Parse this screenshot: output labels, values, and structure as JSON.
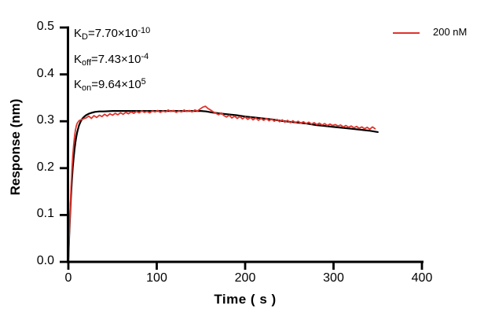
{
  "chart_data": {
    "type": "line",
    "title": "",
    "xlabel": "Time ( s )",
    "ylabel": "Response (nm)",
    "xlim": [
      0,
      400
    ],
    "ylim": [
      0,
      0.5
    ],
    "xticks": [
      "0",
      "100",
      "200",
      "300",
      "400"
    ],
    "yticks": [
      "0.0",
      "0.1",
      "0.2",
      "0.3",
      "0.4",
      "0.5"
    ],
    "grid": false,
    "legend_position": "top-right",
    "annotations": [
      "K_D=7.70×10^-10",
      "K_off=7.43×10^-4",
      "K_on=9.64×10^5"
    ],
    "series": [
      {
        "name": "200 nM",
        "role": "measured sensorgram (noisy)",
        "color": "#de342c",
        "points": [
          [
            0,
            0
          ],
          [
            1,
            0.058
          ],
          [
            2,
            0.112
          ],
          [
            3,
            0.158
          ],
          [
            4,
            0.196
          ],
          [
            5,
            0.226
          ],
          [
            6,
            0.25
          ],
          [
            7,
            0.268
          ],
          [
            8,
            0.281
          ],
          [
            9,
            0.29
          ],
          [
            10,
            0.296
          ],
          [
            12,
            0.301
          ],
          [
            14,
            0.303
          ],
          [
            16,
            0.304
          ],
          [
            18,
            0.306
          ],
          [
            20,
            0.307
          ],
          [
            23,
            0.311
          ],
          [
            26,
            0.306
          ],
          [
            29,
            0.312
          ],
          [
            32,
            0.308
          ],
          [
            35,
            0.313
          ],
          [
            38,
            0.31
          ],
          [
            41,
            0.315
          ],
          [
            44,
            0.311
          ],
          [
            47,
            0.316
          ],
          [
            50,
            0.313
          ],
          [
            53,
            0.317
          ],
          [
            56,
            0.314
          ],
          [
            59,
            0.318
          ],
          [
            62,
            0.315
          ],
          [
            65,
            0.319
          ],
          [
            68,
            0.316
          ],
          [
            71,
            0.32
          ],
          [
            74,
            0.317
          ],
          [
            77,
            0.321
          ],
          [
            80,
            0.318
          ],
          [
            83,
            0.322
          ],
          [
            86,
            0.319
          ],
          [
            89,
            0.321
          ],
          [
            92,
            0.318
          ],
          [
            95,
            0.322
          ],
          [
            98,
            0.32
          ],
          [
            101,
            0.323
          ],
          [
            104,
            0.319
          ],
          [
            107,
            0.322
          ],
          [
            110,
            0.32
          ],
          [
            113,
            0.324
          ],
          [
            116,
            0.321
          ],
          [
            119,
            0.323
          ],
          [
            122,
            0.319
          ],
          [
            125,
            0.322
          ],
          [
            128,
            0.32
          ],
          [
            131,
            0.324
          ],
          [
            134,
            0.321
          ],
          [
            137,
            0.323
          ],
          [
            140,
            0.32
          ],
          [
            143,
            0.324
          ],
          [
            146,
            0.322
          ],
          [
            149,
            0.326
          ],
          [
            152,
            0.33
          ],
          [
            155,
            0.332
          ],
          [
            158,
            0.327
          ],
          [
            161,
            0.324
          ],
          [
            164,
            0.32
          ],
          [
            167,
            0.317
          ],
          [
            170,
            0.314
          ],
          [
            173,
            0.318
          ],
          [
            176,
            0.312
          ],
          [
            179,
            0.309
          ],
          [
            182,
            0.313
          ],
          [
            185,
            0.307
          ],
          [
            188,
            0.311
          ],
          [
            191,
            0.306
          ],
          [
            194,
            0.31
          ],
          [
            197,
            0.305
          ],
          [
            200,
            0.309
          ],
          [
            203,
            0.304
          ],
          [
            206,
            0.308
          ],
          [
            209,
            0.303
          ],
          [
            212,
            0.307
          ],
          [
            215,
            0.302
          ],
          [
            218,
            0.306
          ],
          [
            221,
            0.302
          ],
          [
            224,
            0.306
          ],
          [
            227,
            0.301
          ],
          [
            230,
            0.305
          ],
          [
            233,
            0.3
          ],
          [
            236,
            0.304
          ],
          [
            239,
            0.299
          ],
          [
            242,
            0.303
          ],
          [
            245,
            0.298
          ],
          [
            248,
            0.302
          ],
          [
            251,
            0.297
          ],
          [
            254,
            0.301
          ],
          [
            257,
            0.297
          ],
          [
            260,
            0.3
          ],
          [
            263,
            0.296
          ],
          [
            266,
            0.299
          ],
          [
            269,
            0.295
          ],
          [
            272,
            0.298
          ],
          [
            275,
            0.294
          ],
          [
            278,
            0.297
          ],
          [
            281,
            0.293
          ],
          [
            284,
            0.296
          ],
          [
            287,
            0.292
          ],
          [
            290,
            0.295
          ],
          [
            293,
            0.291
          ],
          [
            296,
            0.294
          ],
          [
            299,
            0.291
          ],
          [
            302,
            0.293
          ],
          [
            305,
            0.29
          ],
          [
            308,
            0.292
          ],
          [
            311,
            0.288
          ],
          [
            314,
            0.291
          ],
          [
            317,
            0.287
          ],
          [
            320,
            0.29
          ],
          [
            323,
            0.286
          ],
          [
            326,
            0.289
          ],
          [
            329,
            0.285
          ],
          [
            332,
            0.288
          ],
          [
            335,
            0.284
          ],
          [
            338,
            0.287
          ],
          [
            341,
            0.283
          ],
          [
            344,
            0.288
          ],
          [
            347,
            0.284
          ]
        ]
      },
      {
        "name": "kinetic fit",
        "role": "1:1 binding model fit (smooth)",
        "color": "#000000",
        "points": [
          [
            0,
            0
          ],
          [
            1,
            0.057
          ],
          [
            2,
            0.103
          ],
          [
            3,
            0.142
          ],
          [
            4,
            0.174
          ],
          [
            5,
            0.201
          ],
          [
            6,
            0.223
          ],
          [
            7,
            0.241
          ],
          [
            8,
            0.255
          ],
          [
            9,
            0.267
          ],
          [
            10,
            0.277
          ],
          [
            12,
            0.291
          ],
          [
            14,
            0.3
          ],
          [
            16,
            0.306
          ],
          [
            18,
            0.31
          ],
          [
            20,
            0.313
          ],
          [
            23,
            0.316
          ],
          [
            26,
            0.318
          ],
          [
            30,
            0.32
          ],
          [
            35,
            0.321
          ],
          [
            40,
            0.321
          ],
          [
            50,
            0.322
          ],
          [
            60,
            0.322
          ],
          [
            80,
            0.322
          ],
          [
            100,
            0.322
          ],
          [
            120,
            0.322
          ],
          [
            140,
            0.322
          ],
          [
            150,
            0.322
          ],
          [
            156,
            0.321
          ],
          [
            162,
            0.319
          ],
          [
            170,
            0.317
          ],
          [
            180,
            0.315
          ],
          [
            190,
            0.313
          ],
          [
            200,
            0.31
          ],
          [
            210,
            0.308
          ],
          [
            220,
            0.306
          ],
          [
            230,
            0.304
          ],
          [
            240,
            0.301
          ],
          [
            250,
            0.299
          ],
          [
            260,
            0.297
          ],
          [
            270,
            0.295
          ],
          [
            280,
            0.292
          ],
          [
            290,
            0.29
          ],
          [
            300,
            0.288
          ],
          [
            310,
            0.286
          ],
          [
            320,
            0.284
          ],
          [
            330,
            0.282
          ],
          [
            340,
            0.28
          ],
          [
            350,
            0.277
          ]
        ]
      }
    ]
  },
  "annotation": {
    "lines": [
      {
        "base": "K",
        "sub": "D",
        "mid": "=7.70×10",
        "sup": "-10"
      },
      {
        "base": "K",
        "sub": "off",
        "mid": "=7.43×10",
        "sup": "-4"
      },
      {
        "base": "K",
        "sub": "on",
        "mid": "=9.64×10",
        "sup": "5"
      }
    ]
  },
  "legend": {
    "label": "200 nM",
    "color": "#de342c"
  }
}
